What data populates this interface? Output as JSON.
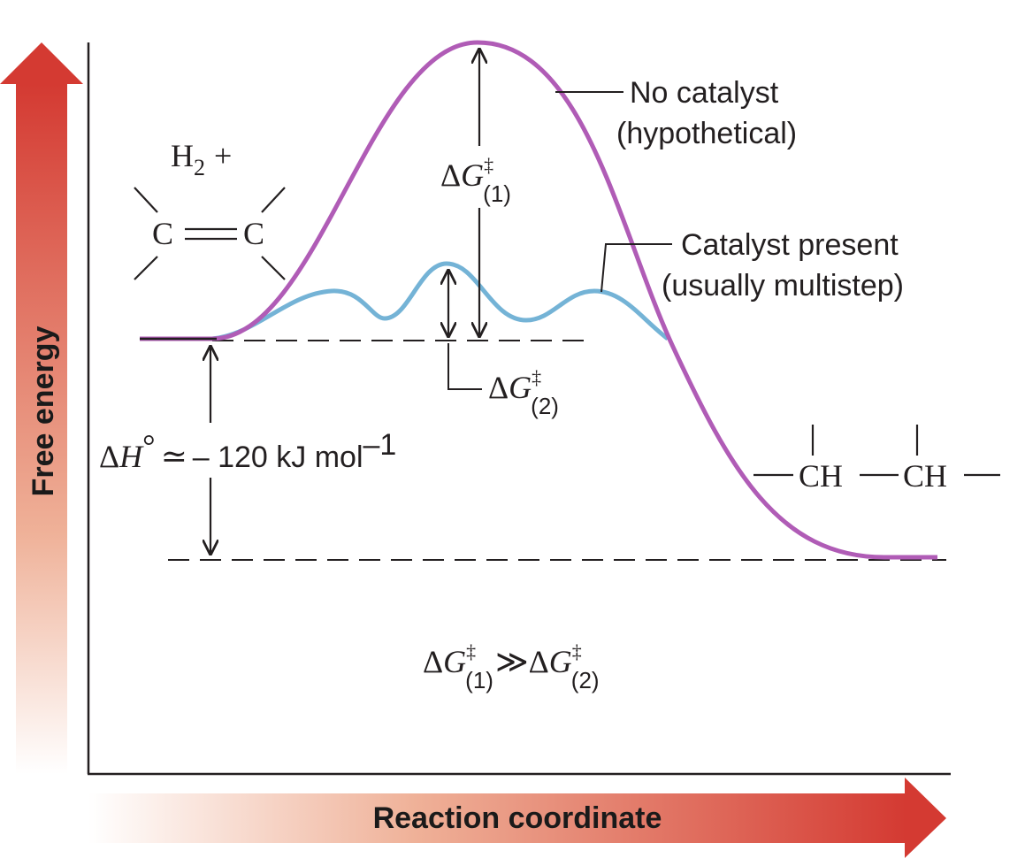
{
  "axes": {
    "y_title": "Free energy",
    "x_title": "Reaction coordinate"
  },
  "curves": {
    "no_catalyst": {
      "label_line1": "No catalyst",
      "label_line2": "(hypothetical)",
      "color": "#b05cb6"
    },
    "catalyst": {
      "label_line1": "Catalyst present",
      "label_line2": "(usually multistep)",
      "color": "#74b3d6"
    }
  },
  "reactant": {
    "h2": "H",
    "h2_subscript": "2",
    "plus": "+",
    "carbon_left": "C",
    "carbon_right": "C"
  },
  "product": {
    "group_left": "CH",
    "group_right": "CH"
  },
  "energies": {
    "dG1": {
      "delta": "Δ",
      "symbol": "G",
      "sup": "‡",
      "sub": "(1)"
    },
    "dG2": {
      "delta": "Δ",
      "symbol": "G",
      "sup": "‡",
      "sub": "(2)"
    },
    "dH": {
      "delta": "Δ",
      "symbol": "H",
      "degree": "°",
      "approx": "≃",
      "value": "– 120 kJ mol",
      "exponent": "–1"
    },
    "comparison_operator": "≫"
  },
  "colors": {
    "axis_arrow_red": "#d43a32",
    "axis_arrow_fade": "#fbe3d8",
    "text": "#231f20"
  }
}
